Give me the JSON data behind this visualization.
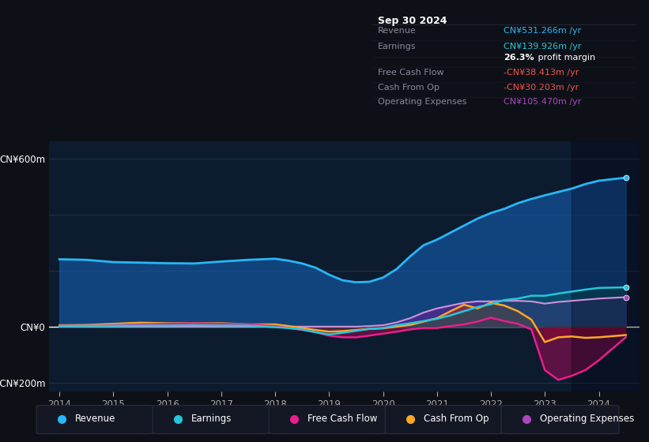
{
  "background_color": "#0d1117",
  "chart_bg_color": "#0d1b2e",
  "years": [
    2014,
    2014.5,
    2015,
    2015.5,
    2016,
    2016.5,
    2017,
    2017.5,
    2018,
    2018.25,
    2018.5,
    2018.75,
    2019,
    2019.25,
    2019.5,
    2019.75,
    2020,
    2020.25,
    2020.5,
    2020.75,
    2021,
    2021.25,
    2021.5,
    2021.75,
    2022,
    2022.25,
    2022.5,
    2022.75,
    2023,
    2023.25,
    2023.5,
    2023.75,
    2024,
    2024.5
  ],
  "revenue": [
    240,
    238,
    230,
    228,
    226,
    225,
    232,
    238,
    242,
    235,
    225,
    210,
    185,
    165,
    158,
    160,
    175,
    205,
    250,
    290,
    310,
    335,
    360,
    385,
    405,
    420,
    440,
    455,
    468,
    480,
    492,
    508,
    520,
    531
  ],
  "earnings": [
    2,
    3,
    3,
    4,
    4,
    5,
    4,
    4,
    -2,
    -5,
    -10,
    -20,
    -28,
    -22,
    -15,
    -8,
    -5,
    5,
    12,
    20,
    28,
    40,
    55,
    70,
    80,
    95,
    100,
    110,
    110,
    118,
    125,
    132,
    138,
    140
  ],
  "free_cash_flow": [
    3,
    3,
    5,
    8,
    10,
    12,
    10,
    8,
    2,
    -5,
    -12,
    -20,
    -32,
    -38,
    -38,
    -32,
    -25,
    -18,
    -10,
    -5,
    -5,
    2,
    8,
    18,
    32,
    20,
    10,
    -10,
    -155,
    -190,
    -175,
    -155,
    -120,
    -38
  ],
  "cash_from_op": [
    5,
    6,
    10,
    14,
    12,
    12,
    12,
    8,
    8,
    2,
    -5,
    -12,
    -18,
    -16,
    -12,
    -8,
    -6,
    0,
    6,
    18,
    30,
    55,
    78,
    65,
    85,
    75,
    55,
    25,
    -55,
    -38,
    -35,
    -40,
    -38,
    -30
  ],
  "operating_expenses": [
    0,
    0,
    0,
    0,
    0,
    0,
    0,
    0,
    0,
    0,
    0,
    0,
    0,
    0,
    0,
    2,
    5,
    15,
    30,
    50,
    65,
    75,
    85,
    90,
    90,
    92,
    92,
    90,
    82,
    88,
    92,
    96,
    100,
    105
  ],
  "ylim": [
    -230,
    660
  ],
  "yticks": [
    -200,
    0,
    600
  ],
  "ytick_labels": [
    "-CN¥200m",
    "CN¥0",
    "CN¥600m"
  ],
  "grid_lines": [
    -200,
    0,
    200,
    400,
    600
  ],
  "xmin": 2013.8,
  "xmax": 2024.75,
  "xtick_years": [
    2014,
    2015,
    2016,
    2017,
    2018,
    2019,
    2020,
    2021,
    2022,
    2023,
    2024
  ],
  "dark_overlay_start": 2023.5,
  "legend": [
    {
      "label": "Revenue",
      "color": "#29b6f6"
    },
    {
      "label": "Earnings",
      "color": "#26c6da"
    },
    {
      "label": "Free Cash Flow",
      "color": "#e91e8c"
    },
    {
      "label": "Cash From Op",
      "color": "#ffa726"
    },
    {
      "label": "Operating Expenses",
      "color": "#ab47bc"
    }
  ],
  "tooltip": {
    "title": "Sep 30 2024",
    "rows": [
      {
        "label": "Revenue",
        "value": "CN¥531.266m /yr",
        "value_color": "#29b6f6"
      },
      {
        "label": "Earnings",
        "value": "CN¥139.926m /yr",
        "value_color": "#26c6da"
      },
      {
        "label": "",
        "bold": "26.3%",
        "rest": " profit margin",
        "value_color": "#ffffff"
      },
      {
        "label": "Free Cash Flow",
        "value": "-CN¥38.413m /yr",
        "value_color": "#ef5350"
      },
      {
        "label": "Cash From Op",
        "value": "-CN¥30.203m /yr",
        "value_color": "#ef5350"
      },
      {
        "label": "Operating Expenses",
        "value": "CN¥105.470m /yr",
        "value_color": "#ab47bc"
      }
    ]
  }
}
